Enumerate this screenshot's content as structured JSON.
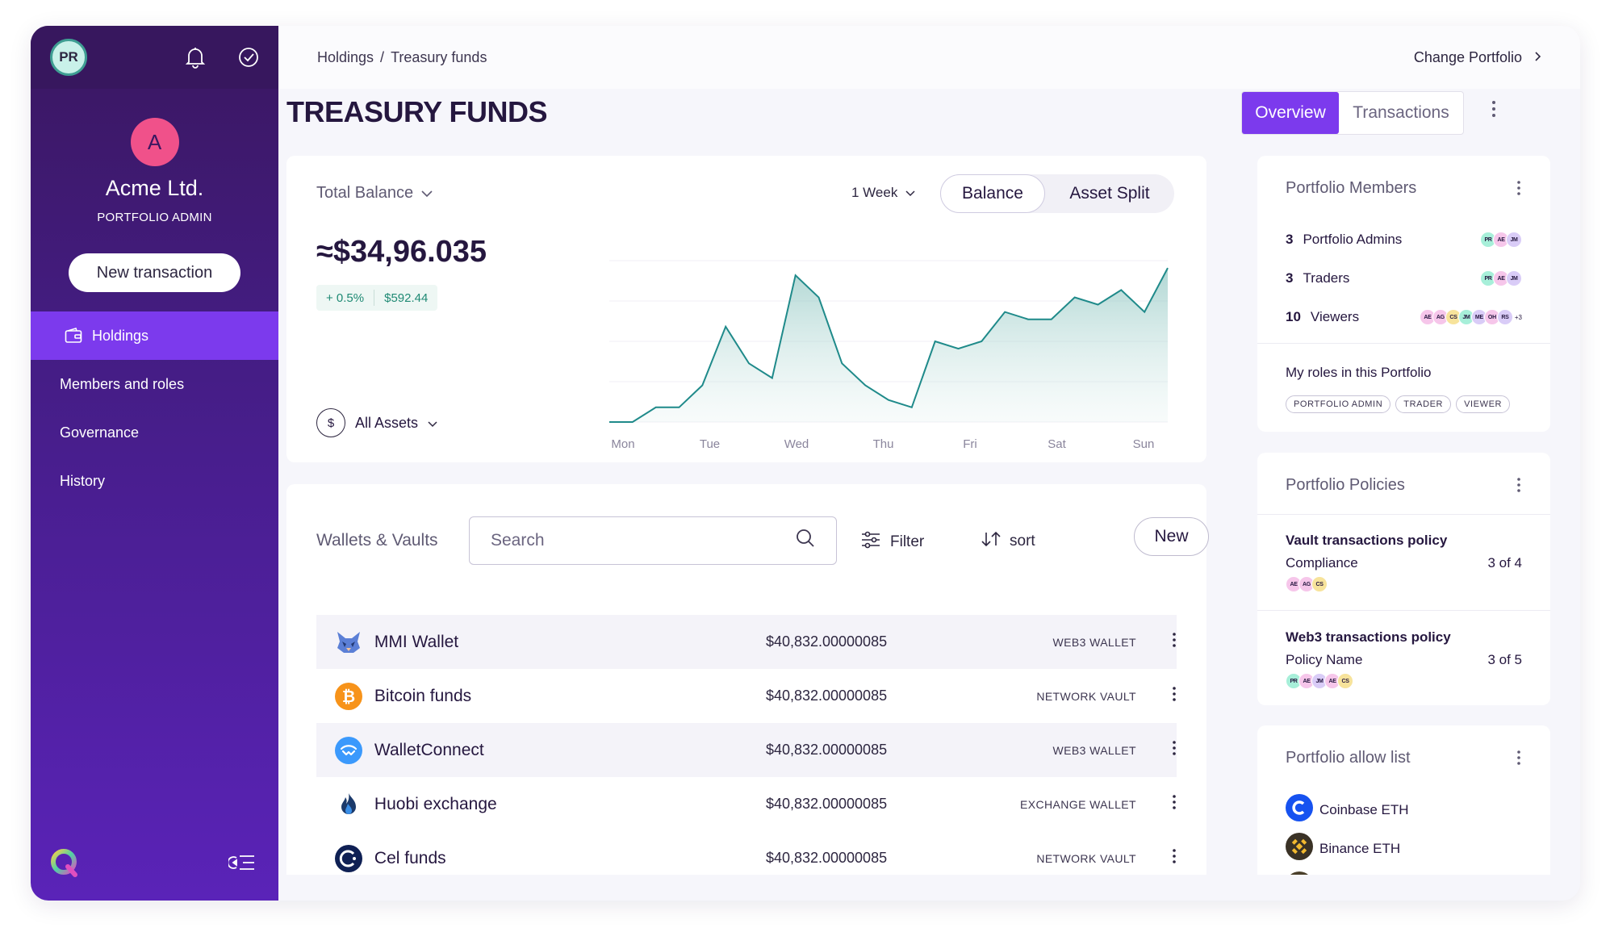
{
  "sidebar": {
    "user_initials": "PR",
    "org_initial": "A",
    "org_name": "Acme Ltd.",
    "org_role": "PORTFOLIO ADMIN",
    "new_transaction_label": "New transaction",
    "nav": [
      {
        "label": "Holdings",
        "active": true
      },
      {
        "label": "Members and roles"
      },
      {
        "label": "Governance"
      },
      {
        "label": "History"
      }
    ]
  },
  "header": {
    "breadcrumb": [
      "Holdings",
      "Treasury funds"
    ],
    "breadcrumb_sep": "/",
    "change_portfolio_label": "Change Portfolio"
  },
  "page": {
    "title": "TREASURY FUNDS",
    "tabs": [
      "Overview",
      "Transactions"
    ],
    "active_tab": "Overview"
  },
  "balance": {
    "label": "Total Balance",
    "amount": "≈$34,96.035",
    "change_pct": "+ 0.5%",
    "change_abs": "$592.44",
    "period": "1 Week",
    "toggle": [
      "Balance",
      "Asset Split"
    ],
    "toggle_active": "Balance",
    "asset_filter": "All Assets",
    "currency_symbol": "$"
  },
  "chart_data": {
    "type": "area",
    "x_tick_labels": [
      "Mon",
      "Tue",
      "Wed",
      "Thu",
      "Fri",
      "Sat",
      "Sun"
    ],
    "values": [
      0,
      0,
      2,
      2,
      5,
      13,
      8,
      6,
      20,
      17,
      8,
      5,
      3,
      2,
      11,
      10,
      11,
      15,
      14,
      14,
      17,
      16,
      18,
      15,
      21
    ],
    "ylim": [
      0,
      22
    ],
    "color": "#1f8a8a",
    "grid": true
  },
  "wallets": {
    "title": "Wallets & Vaults",
    "search_placeholder": "Search",
    "filter_label": "Filter",
    "sort_label": "sort",
    "new_label": "New",
    "rows": [
      {
        "name": "MMI Wallet",
        "amount": "$40,832.00000085",
        "type": "WEB3 WALLET",
        "icon": "fox-icon"
      },
      {
        "name": "Bitcoin funds",
        "amount": "$40,832.00000085",
        "type": "NETWORK VAULT",
        "icon": "bitcoin-icon"
      },
      {
        "name": "WalletConnect",
        "amount": "$40,832.00000085",
        "type": "WEB3 WALLET",
        "icon": "walletconnect-icon"
      },
      {
        "name": "Huobi exchange",
        "amount": "$40,832.00000085",
        "type": "EXCHANGE WALLET",
        "icon": "huobi-icon"
      },
      {
        "name": "Cel funds",
        "amount": "$40,832.00000085",
        "type": "NETWORK VAULT",
        "icon": "celsius-icon"
      }
    ]
  },
  "members": {
    "title": "Portfolio Members",
    "rows": [
      {
        "count": "3",
        "label": "Portfolio Admins",
        "avatars": [
          "PR",
          "AE",
          "JM"
        ]
      },
      {
        "count": "3",
        "label": "Traders",
        "avatars": [
          "PR",
          "AE",
          "JM"
        ]
      },
      {
        "count": "10",
        "label": "Viewers",
        "avatars": [
          "AE",
          "AG",
          "CS",
          "JM",
          "ME",
          "OH",
          "RS"
        ],
        "more": "+3"
      }
    ],
    "my_roles_title": "My roles in this Portfolio",
    "my_roles": [
      "PORTFOLIO ADMIN",
      "TRADER",
      "VIEWER"
    ]
  },
  "policies": {
    "title": "Portfolio Policies",
    "items": [
      {
        "name": "Vault transactions policy",
        "sub": "Compliance",
        "count": "3 of 4",
        "avatars": [
          "AE",
          "AG",
          "CS"
        ]
      },
      {
        "name": "Web3 transactions policy",
        "sub": "Policy Name",
        "count": "3 of 5",
        "avatars": [
          "PR",
          "AE",
          "JM",
          "AE",
          "CS"
        ]
      }
    ]
  },
  "allow_list": {
    "title": "Portfolio allow list",
    "items": [
      {
        "name": "Coinbase ETH",
        "icon": "coinbase-icon"
      },
      {
        "name": "Binance ETH",
        "icon": "binance-icon"
      }
    ]
  },
  "colors": {
    "sidebar": "#451d86",
    "accent": "#7c3aed",
    "positive": "#1f8a74",
    "chart": "#1f8a8a"
  }
}
